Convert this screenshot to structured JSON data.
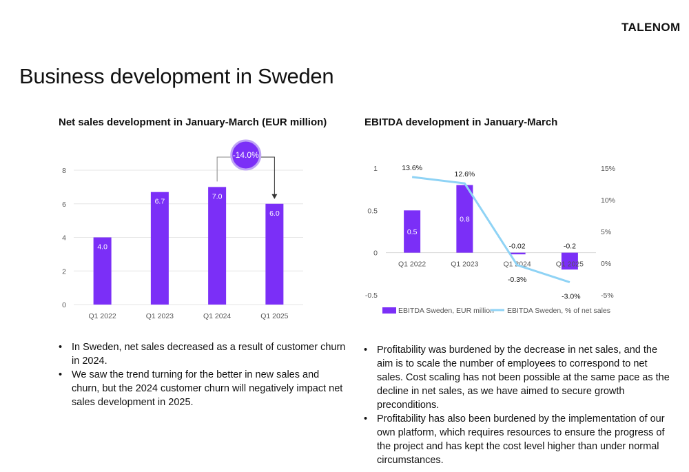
{
  "header": {
    "logo_text": "TALENOM",
    "page_title": "Business development in Sweden"
  },
  "left_section": {
    "title": "Net sales development in January-March (EUR million)",
    "change_badge": "-14.0%",
    "bullets": [
      "In Sweden, net sales decreased as a result of customer churn in 2024.",
      "We saw the trend turning for the better in new sales and churn, but the 2024 customer churn will negatively impact net sales development in 2025."
    ]
  },
  "right_section": {
    "title": "EBITDA development in January-March",
    "bullets": [
      "Profitability was burdened by the decrease in net sales, and the aim is to scale the number of employees to correspond to net sales. Cost scaling has not been possible at the same pace as the decline in net sales, as we have aimed to secure growth preconditions.",
      "Profitability has also been burdened by the implementation of our own platform, which requires resources to ensure the progress of the project and has kept the cost level higher than under normal circumstances."
    ]
  },
  "colors": {
    "bar": "#7b2ff7",
    "line": "#8fd3f5",
    "grid": "#e6e6e6",
    "badge": "#7b2ff7",
    "badge_border": "#bfa4f5"
  },
  "chart_data": [
    {
      "type": "bar",
      "title": "Net sales development in January-March (EUR million)",
      "categories": [
        "Q1 2022",
        "Q1 2023",
        "Q1 2024",
        "Q1 2025"
      ],
      "values": [
        4.0,
        6.7,
        7.0,
        6.0
      ],
      "value_labels": [
        "4.0",
        "6.7",
        "7.0",
        "6.0"
      ],
      "ylim": [
        0,
        8
      ],
      "yticks": [
        "0",
        "2",
        "4",
        "6",
        "8"
      ],
      "grid": true,
      "annotation": {
        "text": "-14.0%",
        "from": "Q1 2024",
        "to": "Q1 2025"
      }
    },
    {
      "type": "bar+line",
      "title": "EBITDA development in January-March",
      "categories": [
        "Q1 2022",
        "Q1 2023",
        "Q1 2024",
        "Q1 2025"
      ],
      "series": [
        {
          "name": "EBITDA Sweden, EUR million",
          "type": "bar",
          "axis": "left",
          "values": [
            0.5,
            0.8,
            -0.02,
            -0.2
          ],
          "value_labels": [
            "0.5",
            "0.8",
            "-0.02",
            "-0.2"
          ]
        },
        {
          "name": "EBITDA Sweden, % of net sales",
          "type": "line",
          "axis": "right",
          "values": [
            13.6,
            12.6,
            -0.3,
            -3.0
          ],
          "value_labels": [
            "13.6%",
            "12.6%",
            "-0.3%",
            "-3.0%"
          ]
        }
      ],
      "ylim_left": [
        -0.5,
        1
      ],
      "yticks_left": [
        "-0.5",
        "0",
        "0.5",
        "1"
      ],
      "ylim_right": [
        -5,
        15
      ],
      "yticks_right": [
        "-5%",
        "0%",
        "5%",
        "10%",
        "15%"
      ],
      "grid": false,
      "legend": "bottom"
    }
  ]
}
